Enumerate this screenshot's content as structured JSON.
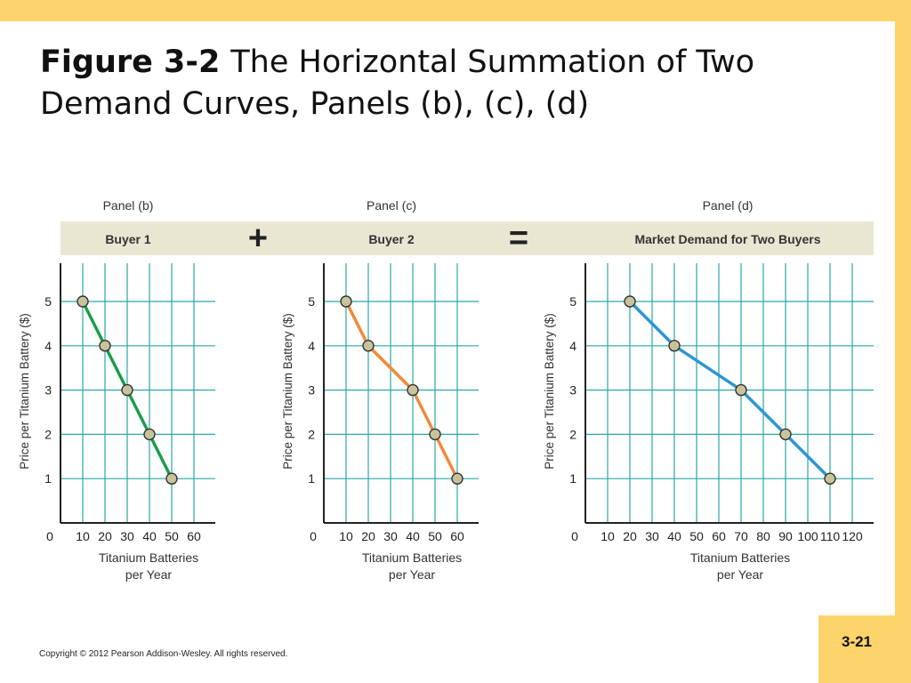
{
  "slide": {
    "title_fig": "Figure 3-2",
    "title_text": "The Horizontal Summation of Two Demand Curves, Panels (b), (c), (d)",
    "copyright": "Copyright © 2012 Pearson Addison-Wesley. All rights reserved.",
    "page_number": "3-21",
    "plus_sign": "+",
    "equals_sign": "=",
    "colors": {
      "background": "#fdd36b",
      "band": "#e9e6d2",
      "grid": "#2aa7a8",
      "axis": "#222222",
      "point_fill": "#c9c39b"
    }
  },
  "chart_data": [
    {
      "type": "line",
      "panel_label": "Panel (b)",
      "band_label": "Buyer 1",
      "ylabel": "Price per Titanium Battery ($)",
      "xlabel_line1": "Titanium Batteries",
      "xlabel_line2": "per Year",
      "x_ticks": [
        0,
        10,
        20,
        30,
        40,
        50,
        60
      ],
      "x_tick_labels": [
        "0",
        "10",
        "20",
        "30",
        "40",
        "50",
        "60"
      ],
      "y_ticks": [
        1,
        2,
        3,
        4,
        5
      ],
      "xlim": [
        0,
        68
      ],
      "ylim": [
        0,
        6
      ],
      "line_color": "#1a9e4a",
      "x": [
        10,
        20,
        30,
        40,
        50
      ],
      "y": [
        5,
        4,
        3,
        2,
        1
      ]
    },
    {
      "type": "line",
      "panel_label": "Panel (c)",
      "band_label": "Buyer 2",
      "ylabel": "Price per Titanium Battery ($)",
      "xlabel_line1": "Titanium Batteries",
      "xlabel_line2": "per Year",
      "x_ticks": [
        0,
        10,
        20,
        30,
        40,
        50,
        60
      ],
      "x_tick_labels": [
        "0",
        "10",
        "20",
        "30",
        "40",
        "50",
        "60"
      ],
      "y_ticks": [
        1,
        2,
        3,
        4,
        5
      ],
      "xlim": [
        0,
        68
      ],
      "ylim": [
        0,
        6
      ],
      "line_color": "#f08a3a",
      "x": [
        10,
        20,
        40,
        50,
        60
      ],
      "y": [
        5,
        4,
        3,
        2,
        1
      ]
    },
    {
      "type": "line",
      "panel_label": "Panel (d)",
      "band_label": "Market Demand for Two Buyers",
      "ylabel": "Price per Titanium Battery ($)",
      "xlabel_line1": "Titanium Batteries",
      "xlabel_line2": "per Year",
      "x_ticks": [
        0,
        10,
        20,
        30,
        40,
        50,
        60,
        70,
        80,
        90,
        100,
        110,
        120
      ],
      "x_tick_labels": [
        "0",
        "10",
        "20",
        "30",
        "40",
        "50",
        "60",
        "70",
        "80",
        "90",
        "100",
        "110",
        "120"
      ],
      "y_ticks": [
        1,
        2,
        3,
        4,
        5
      ],
      "xlim": [
        0,
        128
      ],
      "ylim": [
        0,
        6
      ],
      "line_color": "#2b96d2",
      "x": [
        20,
        40,
        70,
        90,
        110
      ],
      "y": [
        5,
        4,
        3,
        2,
        1
      ]
    }
  ]
}
